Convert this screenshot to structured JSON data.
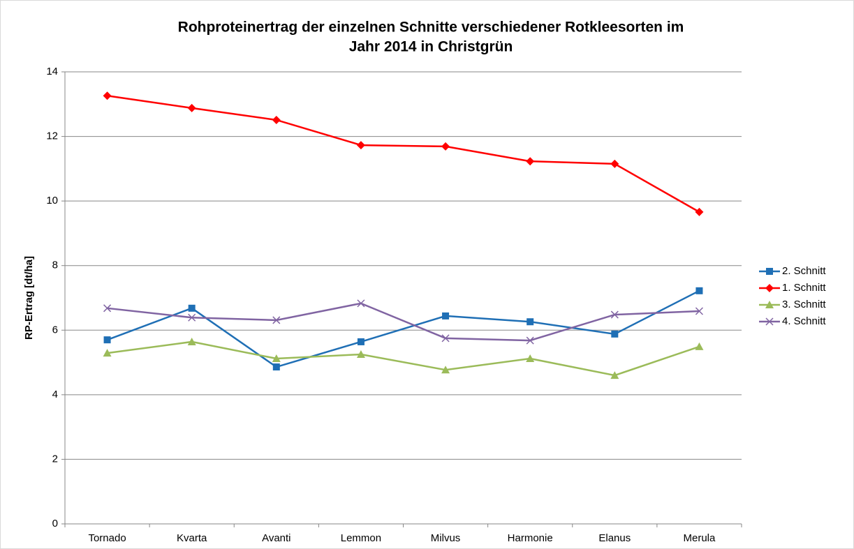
{
  "chart_data": {
    "type": "line",
    "title": [
      "Rohproteinertrag der einzelnen Schnitte verschiedener Rotkleesorten im",
      "Jahr 2014 in Christgrün"
    ],
    "y_label": "RP-Ertrag [dt/ha]",
    "categories": [
      "Tornado",
      "Kvarta",
      "Avanti",
      "Lemmon",
      "Milvus",
      "Harmonie",
      "Elanus",
      "Merula"
    ],
    "series": [
      {
        "name": "2. Schnitt",
        "color": "#1f6fb5",
        "marker": "square",
        "values": [
          5.7,
          6.68,
          4.86,
          5.64,
          6.44,
          6.26,
          5.88,
          7.22
        ]
      },
      {
        "name": "1. Schnitt",
        "color": "#ff0000",
        "marker": "diamond",
        "values": [
          13.26,
          12.88,
          12.51,
          11.73,
          11.69,
          11.23,
          11.15,
          9.66
        ]
      },
      {
        "name": "3. Schnitt",
        "color": "#9bbb59",
        "marker": "triangle",
        "values": [
          5.29,
          5.64,
          5.12,
          5.25,
          4.77,
          5.12,
          4.6,
          5.49
        ]
      },
      {
        "name": "4. Schnitt",
        "color": "#8064a2",
        "marker": "x",
        "values": [
          6.68,
          6.39,
          6.31,
          6.83,
          5.75,
          5.68,
          6.48,
          6.59
        ]
      }
    ],
    "ylim": [
      0,
      14
    ],
    "yticks": [
      0,
      2,
      4,
      6,
      8,
      10,
      12,
      14
    ],
    "grid": true,
    "legend": "right"
  }
}
